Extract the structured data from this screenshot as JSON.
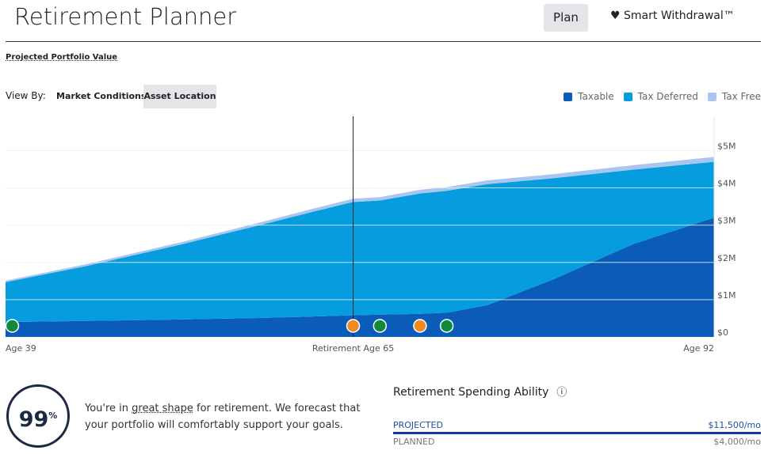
{
  "header": {
    "title": "Retirement Planner",
    "tabs": [
      "Plan",
      "Smart Withdrawal™"
    ]
  },
  "section_title": "Projected Portfolio Value",
  "view_by": {
    "label": "View By:",
    "options": [
      "Market Conditions",
      "Asset Location"
    ]
  },
  "chart_data": {
    "type": "area",
    "stacked": true,
    "x": [
      39,
      45,
      52,
      58,
      62,
      65,
      67,
      70,
      72,
      75,
      80,
      86,
      92
    ],
    "series": [
      {
        "name": "Taxable",
        "color": "#0a5cb8",
        "values": [
          400000,
          430000,
          470000,
          510000,
          550000,
          580000,
          600000,
          620000,
          650000,
          850000,
          1550000,
          2500000,
          3200000
        ]
      },
      {
        "name": "Tax Deferred",
        "color": "#069ddf",
        "values": [
          1070000,
          1470000,
          2000000,
          2490000,
          2810000,
          3040000,
          3060000,
          3230000,
          3270000,
          3250000,
          2710000,
          1990000,
          1500000
        ]
      },
      {
        "name": "Tax Free",
        "color": "#a8c6ef",
        "values": [
          40000,
          50000,
          60000,
          70000,
          80000,
          90000,
          90000,
          100000,
          100000,
          100000,
          110000,
          120000,
          130000
        ]
      }
    ],
    "xlim": [
      39,
      92
    ],
    "xticks": [
      {
        "value": 39,
        "label": "Age 39"
      },
      {
        "value": 65,
        "label": "Retirement Age 65"
      },
      {
        "value": 92,
        "label": "Age 92"
      }
    ],
    "ylim": [
      0,
      5900000
    ],
    "yticks": [
      {
        "value": 0,
        "label": "$0"
      },
      {
        "value": 1000000,
        "label": "$1M"
      },
      {
        "value": 2000000,
        "label": "$2M"
      },
      {
        "value": 3000000,
        "label": "$3M"
      },
      {
        "value": 4000000,
        "label": "$4M"
      },
      {
        "value": 5000000,
        "label": "$5M"
      }
    ],
    "grid": true,
    "legend": "top-right",
    "event_ages": [
      39.5,
      65,
      67,
      70,
      72
    ],
    "event_colors": [
      "#128a3e",
      "#f08a24",
      "#128a3e",
      "#f08a24",
      "#128a3e"
    ]
  },
  "score": {
    "value": "99",
    "unit": "%"
  },
  "message": {
    "before": "You're in ",
    "link": "great shape",
    "after": " for retirement. We forecast that your portfolio will comfortably support your goals."
  },
  "spending": {
    "title": "Retirement Spending Ability",
    "rows": [
      {
        "label": "PROJECTED",
        "value": "$11,500/mo"
      },
      {
        "label": "PLANNED",
        "value": "$4,000/mo"
      }
    ]
  }
}
